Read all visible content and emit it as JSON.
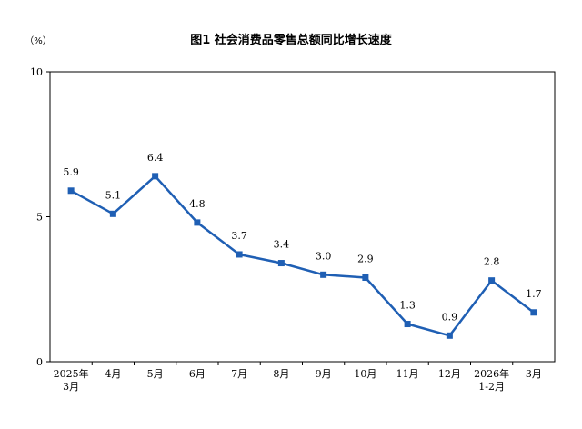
{
  "chart_data": {
    "type": "line",
    "title": "图1  社会消费品零售总额同比增长速度",
    "unit_label": "（%）",
    "categories": [
      [
        "2025年",
        "3月"
      ],
      [
        "4月"
      ],
      [
        "5月"
      ],
      [
        "6月"
      ],
      [
        "7月"
      ],
      [
        "8月"
      ],
      [
        "9月"
      ],
      [
        "10月"
      ],
      [
        "11月"
      ],
      [
        "12月"
      ],
      [
        "2026年",
        "1-2月"
      ],
      [
        "3月"
      ]
    ],
    "series": [
      {
        "values": [
          5.9,
          5.1,
          6.4,
          4.8,
          3.7,
          3.4,
          3.0,
          2.9,
          1.3,
          0.9,
          2.8,
          1.7
        ],
        "labels": [
          "5.9",
          "5.1",
          "6.4",
          "4.8",
          "3.7",
          "3.4",
          "3.0",
          "2.9",
          "1.3",
          "0.9",
          "2.8",
          "1.7"
        ],
        "color": "#1f5fb4"
      }
    ],
    "ylim": [
      0,
      10
    ],
    "yticks": [
      "0",
      "5",
      "10"
    ],
    "grid": false,
    "legend": "none"
  }
}
